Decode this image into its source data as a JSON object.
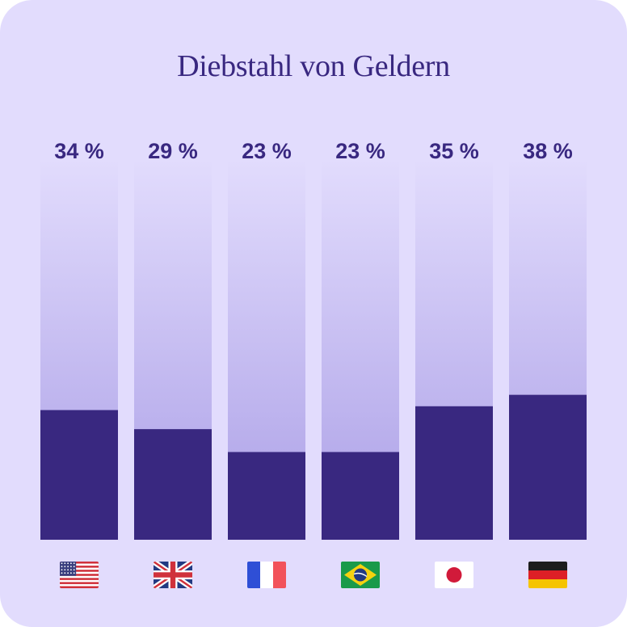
{
  "chart_data": {
    "type": "bar",
    "title": "Diebstahl von Geldern",
    "categories": [
      "us-flag-icon",
      "uk-flag-icon",
      "france-flag-icon",
      "brazil-flag-icon",
      "japan-flag-icon",
      "germany-flag-icon"
    ],
    "values": [
      34,
      29,
      23,
      23,
      35,
      38
    ],
    "value_labels": [
      "34 %",
      "29 %",
      "23 %",
      "23 %",
      "35 %",
      "38 %"
    ],
    "ylim": [
      0,
      100
    ],
    "grid": false,
    "legend": "none",
    "colors": {
      "background": "#e2dcfd",
      "bar_fill": "#392880",
      "track_top": "#e2dcfd",
      "track_bottom": "#ab9fe6",
      "text": "#392880"
    }
  }
}
